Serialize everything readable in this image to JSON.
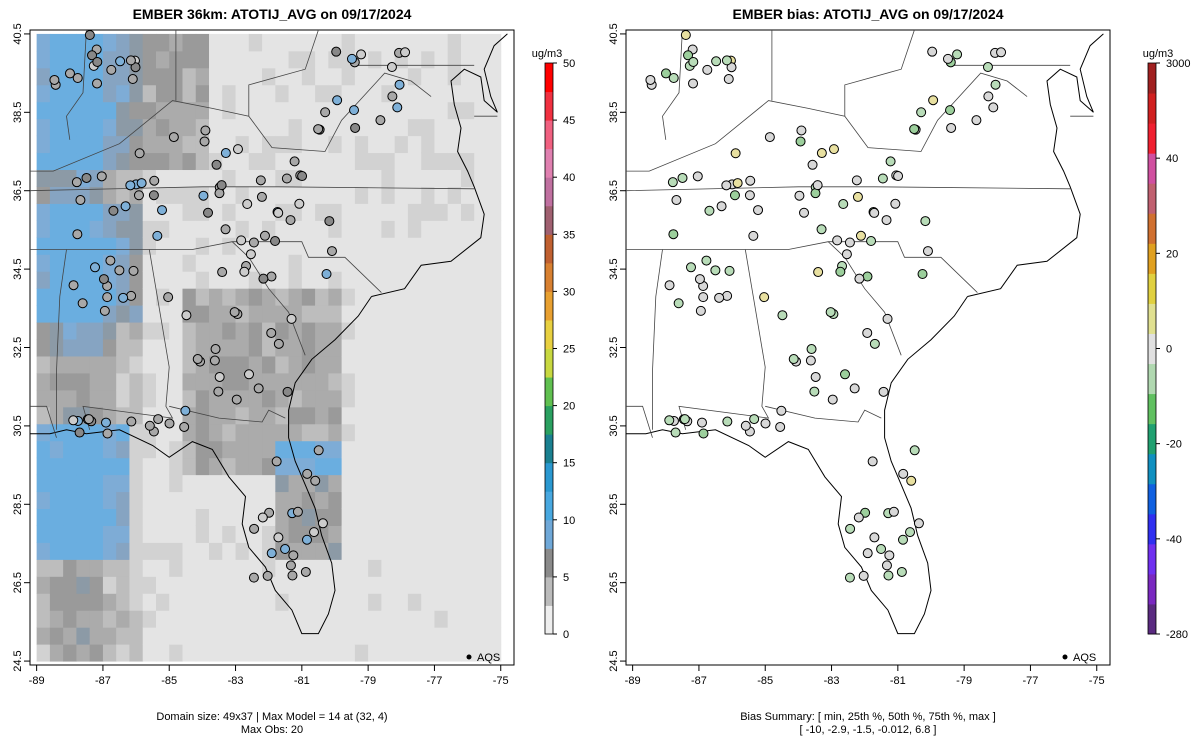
{
  "panels": [
    {
      "title": "EMBER 36km: ATOTIJ_AVG on 09/17/2024",
      "legend_label": "AQS",
      "footer_line1": "Domain size: 49x37 | Max Model = 14 at (32, 4)",
      "footer_line2": "Max Obs: 20"
    },
    {
      "title": "EMBER bias: ATOTIJ_AVG on 09/17/2024",
      "legend_label": "AQS",
      "footer_line1": "Bias Summary: [ min, 25th %, 50th %, 75th %, max ]",
      "footer_line2": "[ -10,   -2.9,   -1.5,   -0.012,   6.8 ]"
    }
  ],
  "colorbars": [
    {
      "unit": "ug/m3",
      "ticks": [
        "0",
        "5",
        "10",
        "15",
        "20",
        "25",
        "30",
        "35",
        "40",
        "45",
        "50"
      ],
      "stops": [
        "#eeeeee",
        "#bbbbbb",
        "#8a8a8a",
        "#6fa8d8",
        "#48a8e0",
        "#2a98d0",
        "#1a8090",
        "#2aa060",
        "#60c050",
        "#c8d840",
        "#e8d040",
        "#e8a030",
        "#d88030",
        "#c06030",
        "#a06070",
        "#c070a0",
        "#e080b0",
        "#f06080",
        "#f03040",
        "#ff0000"
      ]
    },
    {
      "unit": "ug/m3",
      "ticks": [
        "-280",
        "-40",
        "-20",
        "0",
        "20",
        "40",
        "3000"
      ],
      "stops": [
        "#5a2a80",
        "#7a28c0",
        "#7030f0",
        "#3030f0",
        "#1060e0",
        "#1090c0",
        "#20a070",
        "#60c060",
        "#b0d8b0",
        "#e0e0e0",
        "#e0e090",
        "#e0d040",
        "#e0a020",
        "#d07030",
        "#c06070",
        "#d050a0",
        "#f02030",
        "#d02020",
        "#a02020"
      ]
    }
  ],
  "chart_data": [
    {
      "type": "heatmap",
      "title": "EMBER 36km: ATOTIJ_AVG on 09/17/2024",
      "x_axis": {
        "range": [
          -89.2,
          -74.6
        ],
        "ticks": [
          -89,
          -87,
          -85,
          -83,
          -81,
          -79,
          -77,
          -75
        ]
      },
      "y_axis": {
        "range": [
          24.4,
          40.6
        ],
        "ticks": [
          24.5,
          26.5,
          28.5,
          30.5,
          32.5,
          34.5,
          36.5,
          38.5,
          40.5
        ]
      },
      "colorbar": {
        "unit": "ug/m3",
        "range": [
          0,
          50
        ]
      },
      "grid": {
        "lon_min": -89,
        "lon_max": -75,
        "lat_min": 24.5,
        "lat_max": 40.5,
        "cells": "approximate gridded model field (values 0–14)"
      },
      "points_source": "AQS",
      "domain_size": "49x37",
      "max_model": 14,
      "max_model_location": "(32, 4)",
      "max_obs": 20
    },
    {
      "type": "scatter",
      "title": "EMBER bias: ATOTIJ_AVG on 09/17/2024",
      "x_axis": {
        "range": [
          -89.2,
          -74.6
        ],
        "ticks": [
          -89,
          -87,
          -85,
          -83,
          -81,
          -79,
          -77,
          -75
        ]
      },
      "y_axis": {
        "range": [
          24.4,
          40.6
        ],
        "ticks": [
          24.5,
          26.5,
          28.5,
          30.5,
          32.5,
          34.5,
          36.5,
          38.5,
          40.5
        ]
      },
      "colorbar": {
        "unit": "ug/m3",
        "ticks": [
          -280,
          -40,
          -20,
          0,
          20,
          40,
          3000
        ]
      },
      "bias_summary": {
        "min": -10,
        "p25": -2.9,
        "p50": -1.5,
        "p75": -0.012,
        "max": 6.8
      },
      "points_source": "AQS"
    }
  ]
}
